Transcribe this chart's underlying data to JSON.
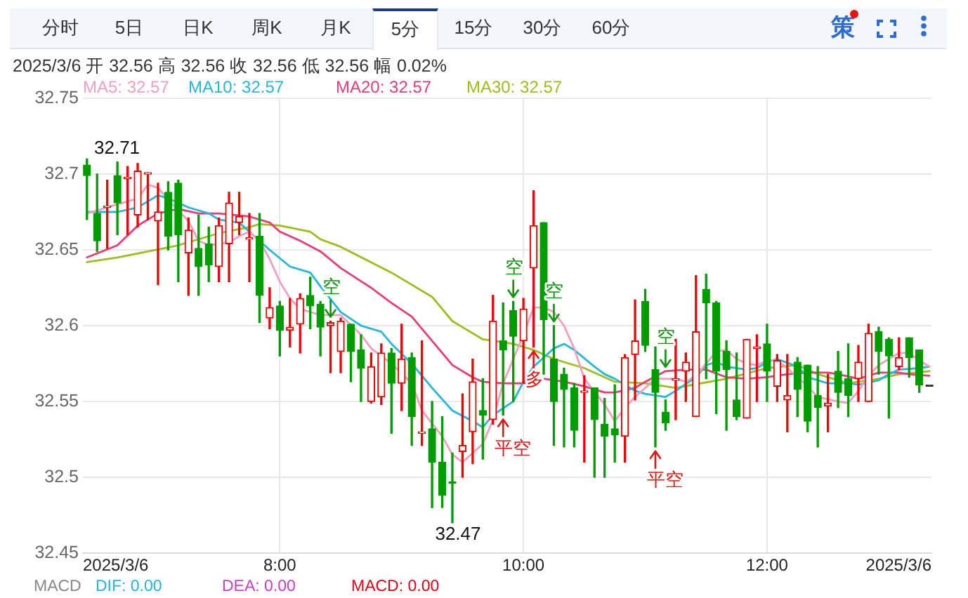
{
  "chart_data": [
    {
      "type": "other",
      "annotations": [
        "分时",
        "5日",
        "日K",
        "周K",
        "月K",
        "5分",
        "15分",
        "30分",
        "60分",
        "策"
      ]
    },
    {
      "type": "candlestick",
      "subtitle": "2025/3/6 开 32.56 高 32.56 收 32.56 低 32.56 幅 0.02%",
      "x": [
        "2025-03-06T06:25",
        "2025-03-06T06:30",
        "2025-03-06T06:35",
        "2025-03-06T06:40",
        "2025-03-06T06:45",
        "2025-03-06T06:50",
        "2025-03-06T06:55",
        "2025-03-06T07:00",
        "2025-03-06T07:05",
        "2025-03-06T07:10",
        "2025-03-06T07:15",
        "2025-03-06T07:20",
        "2025-03-06T07:25",
        "2025-03-06T07:30",
        "2025-03-06T07:35",
        "2025-03-06T07:40",
        "2025-03-06T07:45",
        "2025-03-06T07:50",
        "2025-03-06T07:55",
        "2025-03-06T08:00",
        "2025-03-06T08:05",
        "2025-03-06T08:10",
        "2025-03-06T08:15",
        "2025-03-06T08:20",
        "2025-03-06T08:25",
        "2025-03-06T08:30",
        "2025-03-06T08:35",
        "2025-03-06T08:40",
        "2025-03-06T08:45",
        "2025-03-06T08:50",
        "2025-03-06T08:55",
        "2025-03-06T09:00",
        "2025-03-06T09:05",
        "2025-03-06T09:10",
        "2025-03-06T09:15",
        "2025-03-06T09:20",
        "2025-03-06T09:25",
        "2025-03-06T09:30",
        "2025-03-06T09:35",
        "2025-03-06T09:40",
        "2025-03-06T09:45",
        "2025-03-06T09:50",
        "2025-03-06T09:55",
        "2025-03-06T10:00",
        "2025-03-06T10:05",
        "2025-03-06T10:10",
        "2025-03-06T10:15",
        "2025-03-06T10:20",
        "2025-03-06T10:25",
        "2025-03-06T10:30",
        "2025-03-06T10:35",
        "2025-03-06T10:40",
        "2025-03-06T10:45",
        "2025-03-06T10:50",
        "2025-03-06T10:55",
        "2025-03-06T11:00",
        "2025-03-06T11:05",
        "2025-03-06T11:10",
        "2025-03-06T11:15",
        "2025-03-06T11:20",
        "2025-03-06T11:25",
        "2025-03-06T11:30",
        "2025-03-06T11:35",
        "2025-03-06T11:40",
        "2025-03-06T11:45",
        "2025-03-06T11:50",
        "2025-03-06T11:55",
        "2025-03-06T12:00",
        "2025-03-06T12:05",
        "2025-03-06T12:10",
        "2025-03-06T12:15",
        "2025-03-06T12:20",
        "2025-03-06T12:25",
        "2025-03-06T12:30",
        "2025-03-06T12:35",
        "2025-03-06T12:40",
        "2025-03-06T12:45",
        "2025-03-06T12:50",
        "2025-03-06T12:55",
        "2025-03-06T13:00",
        "2025-03-06T13:05",
        "2025-03-06T13:10",
        "2025-03-06T13:15",
        "2025-03-06T13:20"
      ],
      "ohlc": [
        [
          32.706,
          32.71,
          32.67,
          32.699
        ],
        [
          32.674,
          32.7,
          32.649,
          32.656
        ],
        [
          32.678,
          32.696,
          32.651,
          32.679
        ],
        [
          32.699,
          32.708,
          32.66,
          32.681
        ],
        [
          32.697,
          32.705,
          32.66,
          32.698
        ],
        [
          32.673,
          32.707,
          32.665,
          32.702
        ],
        [
          32.7,
          32.701,
          32.67,
          32.701
        ],
        [
          32.669,
          32.694,
          32.627,
          32.675
        ],
        [
          32.688,
          32.695,
          32.65,
          32.659
        ],
        [
          32.694,
          32.696,
          32.629,
          32.66
        ],
        [
          32.648,
          32.671,
          32.62,
          32.663
        ],
        [
          32.651,
          32.673,
          32.62,
          32.639
        ],
        [
          32.654,
          32.665,
          32.629,
          32.64
        ],
        [
          32.639,
          32.671,
          32.629,
          32.666
        ],
        [
          32.654,
          32.688,
          32.629,
          32.681
        ],
        [
          32.668,
          32.688,
          32.66,
          32.672
        ],
        [
          32.657,
          32.674,
          32.629,
          32.658
        ],
        [
          32.659,
          32.674,
          32.602,
          32.62
        ],
        [
          32.605,
          32.625,
          32.598,
          32.612
        ],
        [
          32.613,
          32.616,
          32.58,
          32.597
        ],
        [
          32.597,
          32.618,
          32.586,
          32.599
        ],
        [
          32.601,
          32.621,
          32.582,
          32.618
        ],
        [
          32.62,
          32.632,
          32.598,
          32.613
        ],
        [
          32.614,
          32.616,
          32.58,
          32.599
        ],
        [
          32.6,
          32.603,
          32.569,
          32.602
        ],
        [
          32.583,
          32.605,
          32.569,
          32.603
        ],
        [
          32.601,
          32.601,
          32.563,
          32.583
        ],
        [
          32.584,
          32.594,
          32.55,
          32.572
        ],
        [
          32.55,
          32.582,
          32.549,
          32.573
        ],
        [
          32.553,
          32.588,
          32.548,
          32.582
        ],
        [
          32.582,
          32.585,
          32.529,
          32.562
        ],
        [
          32.562,
          32.601,
          32.544,
          32.578
        ],
        [
          32.579,
          32.582,
          32.521,
          32.54
        ],
        [
          32.529,
          32.59,
          32.521,
          32.53
        ],
        [
          32.532,
          32.55,
          32.48,
          32.51
        ],
        [
          32.51,
          32.54,
          32.48,
          32.488
        ],
        [
          32.497,
          32.516,
          32.47,
          32.496
        ],
        [
          32.517,
          32.555,
          32.5,
          32.521
        ],
        [
          32.53,
          32.578,
          32.509,
          32.563
        ],
        [
          32.544,
          32.565,
          32.512,
          32.541
        ],
        [
          32.538,
          32.62,
          32.535,
          32.603
        ],
        [
          32.59,
          32.615,
          32.541,
          32.584
        ],
        [
          32.61,
          32.616,
          32.55,
          32.593
        ],
        [
          32.59,
          32.618,
          32.562,
          32.611
        ],
        [
          32.638,
          32.689,
          32.586,
          32.666
        ],
        [
          32.668,
          32.668,
          32.568,
          32.604
        ],
        [
          32.578,
          32.6,
          32.521,
          32.55
        ],
        [
          32.568,
          32.572,
          32.52,
          32.558
        ],
        [
          32.559,
          32.562,
          32.52,
          32.531
        ],
        [
          32.556,
          32.567,
          32.51,
          32.557
        ],
        [
          32.559,
          32.559,
          32.5,
          32.538
        ],
        [
          32.535,
          32.552,
          32.5,
          32.527
        ],
        [
          32.532,
          32.561,
          32.51,
          32.528
        ],
        [
          32.527,
          32.581,
          32.51,
          32.579
        ],
        [
          32.581,
          32.617,
          32.551,
          32.59
        ],
        [
          32.616,
          32.624,
          32.583,
          32.587
        ],
        [
          32.571,
          32.586,
          32.52,
          32.556
        ],
        [
          32.543,
          32.551,
          32.531,
          32.536
        ],
        [
          32.564,
          32.591,
          32.538,
          32.565
        ],
        [
          32.57,
          32.582,
          32.55,
          32.576
        ],
        [
          32.54,
          32.633,
          32.54,
          32.596
        ],
        [
          32.624,
          32.634,
          32.565,
          32.615
        ],
        [
          32.615,
          32.616,
          32.542,
          32.57
        ],
        [
          32.583,
          32.59,
          32.531,
          32.571
        ],
        [
          32.551,
          32.582,
          32.538,
          32.54
        ],
        [
          32.539,
          32.591,
          32.539,
          32.591
        ],
        [
          32.585,
          32.594,
          32.55,
          32.586
        ],
        [
          32.588,
          32.601,
          32.55,
          32.57
        ],
        [
          32.56,
          32.581,
          32.55,
          32.577
        ],
        [
          32.551,
          32.581,
          32.53,
          32.554
        ],
        [
          32.576,
          32.579,
          32.54,
          32.558
        ],
        [
          32.574,
          32.574,
          32.53,
          32.537
        ],
        [
          32.554,
          32.573,
          32.52,
          32.546
        ],
        [
          32.547,
          32.568,
          32.53,
          32.549
        ],
        [
          32.57,
          32.583,
          32.546,
          32.556
        ],
        [
          32.565,
          32.588,
          32.54,
          32.554
        ],
        [
          32.565,
          32.587,
          32.55,
          32.576
        ],
        [
          32.55,
          32.601,
          32.55,
          32.595
        ],
        [
          32.596,
          32.599,
          32.568,
          32.583
        ],
        [
          32.591,
          32.592,
          32.539,
          32.58
        ],
        [
          32.573,
          32.592,
          32.571,
          32.579
        ],
        [
          32.592,
          32.592,
          32.566,
          32.579
        ],
        [
          32.584,
          32.584,
          32.556,
          32.561
        ],
        [
          32.56,
          32.56,
          32.56,
          32.56
        ]
      ],
      "colors": [
        "#009c00",
        "#009c00",
        "#f50000",
        "#009c00",
        "#f50000",
        "#f50000",
        "#f50000",
        "#f50000",
        "#009c00",
        "#009c00",
        "#f50000",
        "#009c00",
        "#009c00",
        "#f50000",
        "#f50000",
        "#f50000",
        "#f50000",
        "#009c00",
        "#f50000",
        "#009c00",
        "#f50000",
        "#f50000",
        "#009c00",
        "#009c00",
        "#f50000",
        "#f50000",
        "#009c00",
        "#009c00",
        "#f50000",
        "#f50000",
        "#009c00",
        "#f50000",
        "#009c00",
        "#f50000",
        "#009c00",
        "#009c00",
        "#009c00",
        "#f50000",
        "#f50000",
        "#009c00",
        "#f50000",
        "#009c00",
        "#009c00",
        "#f50000",
        "#f50000",
        "#009c00",
        "#009c00",
        "#009c00",
        "#009c00",
        "#f50000",
        "#009c00",
        "#009c00",
        "#009c00",
        "#f50000",
        "#f50000",
        "#009c00",
        "#009c00",
        "#009c00",
        "#f50000",
        "#f50000",
        "#f50000",
        "#009c00",
        "#009c00",
        "#009c00",
        "#009c00",
        "#f50000",
        "#f50000",
        "#009c00",
        "#f50000",
        "#f50000",
        "#009c00",
        "#009c00",
        "#009c00",
        "#f50000",
        "#009c00",
        "#009c00",
        "#f50000",
        "#f50000",
        "#009c00",
        "#009c00",
        "#f50000",
        "#009c00",
        "#009c00",
        "#333333"
      ],
      "series": [
        {
          "name": "MA5: 32.57",
          "type": "line",
          "color": "#f59ec0",
          "x": [
            "2025-03-06T06:25",
            "2025-03-06T06:40",
            "2025-03-06T06:50",
            "2025-03-06T06:55",
            "2025-03-06T07:00",
            "2025-03-06T07:05",
            "2025-03-06T07:15",
            "2025-03-06T07:20",
            "2025-03-06T07:25",
            "2025-03-06T07:35",
            "2025-03-06T07:40",
            "2025-03-06T07:45",
            "2025-03-06T07:50",
            "2025-03-06T07:55",
            "2025-03-06T08:00",
            "2025-03-06T08:05",
            "2025-03-06T08:10",
            "2025-03-06T08:20",
            "2025-03-06T08:30",
            "2025-03-06T08:40",
            "2025-03-06T08:45",
            "2025-03-06T08:55",
            "2025-03-06T09:05",
            "2025-03-06T09:10",
            "2025-03-06T09:20",
            "2025-03-06T09:25",
            "2025-03-06T09:30",
            "2025-03-06T09:35",
            "2025-03-06T09:40",
            "2025-03-06T09:45",
            "2025-03-06T09:50",
            "2025-03-06T10:00",
            "2025-03-06T10:05",
            "2025-03-06T10:10",
            "2025-03-06T10:15",
            "2025-03-06T10:20",
            "2025-03-06T10:25",
            "2025-03-06T10:30",
            "2025-03-06T10:40",
            "2025-03-06T10:45",
            "2025-03-06T10:50",
            "2025-03-06T10:55",
            "2025-03-06T11:05",
            "2025-03-06T11:15",
            "2025-03-06T11:20",
            "2025-03-06T11:25",
            "2025-03-06T11:35",
            "2025-03-06T11:40",
            "2025-03-06T11:45",
            "2025-03-06T11:50",
            "2025-03-06T11:55",
            "2025-03-06T12:00",
            "2025-03-06T12:05",
            "2025-03-06T12:10",
            "2025-03-06T12:15",
            "2025-03-06T12:20",
            "2025-03-06T12:25",
            "2025-03-06T12:35",
            "2025-03-06T12:40",
            "2025-03-06T12:45",
            "2025-03-06T12:50",
            "2025-03-06T12:55",
            "2025-03-06T13:05",
            "2025-03-06T13:10",
            "2025-03-06T13:15",
            "2025-03-06T13:20"
          ],
          "values": [
            32.674,
            32.68,
            32.684,
            32.693,
            32.691,
            32.683,
            32.669,
            32.656,
            32.653,
            32.655,
            32.659,
            32.662,
            32.656,
            32.644,
            32.629,
            32.618,
            32.611,
            32.607,
            32.607,
            32.594,
            32.585,
            32.575,
            32.562,
            32.544,
            32.527,
            32.515,
            32.51,
            32.516,
            32.522,
            32.538,
            32.562,
            32.594,
            32.612,
            32.612,
            32.609,
            32.6,
            32.585,
            32.565,
            32.548,
            32.537,
            32.546,
            32.553,
            32.565,
            32.565,
            32.563,
            32.567,
            32.583,
            32.584,
            32.578,
            32.575,
            32.574,
            32.577,
            32.577,
            32.572,
            32.566,
            32.56,
            32.553,
            32.55,
            32.549,
            32.557,
            32.567,
            32.574,
            32.582,
            32.582,
            32.577,
            32.573
          ]
        },
        {
          "name": "MA10: 32.57",
          "type": "line",
          "color": "#22b8e0",
          "x": [
            "2025-03-06T06:25",
            "2025-03-06T06:40",
            "2025-03-06T06:50",
            "2025-03-06T06:55",
            "2025-03-06T07:00",
            "2025-03-06T07:05",
            "2025-03-06T07:15",
            "2025-03-06T07:25",
            "2025-03-06T07:30",
            "2025-03-06T07:40",
            "2025-03-06T07:45",
            "2025-03-06T07:55",
            "2025-03-06T08:05",
            "2025-03-06T08:15",
            "2025-03-06T08:20",
            "2025-03-06T08:30",
            "2025-03-06T08:40",
            "2025-03-06T08:50",
            "2025-03-06T08:55",
            "2025-03-06T09:05",
            "2025-03-06T09:15",
            "2025-03-06T09:25",
            "2025-03-06T09:35",
            "2025-03-06T09:40",
            "2025-03-06T09:45",
            "2025-03-06T09:55",
            "2025-03-06T10:00",
            "2025-03-06T10:05",
            "2025-03-06T10:15",
            "2025-03-06T10:20",
            "2025-03-06T10:25",
            "2025-03-06T10:35",
            "2025-03-06T10:40",
            "2025-03-06T10:45",
            "2025-03-06T10:55",
            "2025-03-06T11:00",
            "2025-03-06T11:10",
            "2025-03-06T11:15",
            "2025-03-06T11:25",
            "2025-03-06T11:30",
            "2025-03-06T11:35",
            "2025-03-06T11:40",
            "2025-03-06T11:50",
            "2025-03-06T11:55",
            "2025-03-06T12:00",
            "2025-03-06T12:05",
            "2025-03-06T12:15",
            "2025-03-06T12:20",
            "2025-03-06T12:30",
            "2025-03-06T12:35",
            "2025-03-06T12:40",
            "2025-03-06T12:45",
            "2025-03-06T12:55",
            "2025-03-06T13:00",
            "2025-03-06T13:05",
            "2025-03-06T13:15",
            "2025-03-06T13:20"
          ],
          "values": [
            32.675,
            32.675,
            32.678,
            32.682,
            32.686,
            32.684,
            32.678,
            32.674,
            32.67,
            32.668,
            32.662,
            32.65,
            32.639,
            32.635,
            32.626,
            32.609,
            32.6,
            32.596,
            32.588,
            32.575,
            32.559,
            32.544,
            32.537,
            32.533,
            32.541,
            32.55,
            32.563,
            32.573,
            32.585,
            32.588,
            32.584,
            32.573,
            32.568,
            32.565,
            32.557,
            32.555,
            32.553,
            32.557,
            32.566,
            32.574,
            32.576,
            32.573,
            32.571,
            32.572,
            32.576,
            32.578,
            32.573,
            32.566,
            32.562,
            32.562,
            32.562,
            32.561,
            32.564,
            32.568,
            32.571,
            32.572,
            32.573
          ]
        },
        {
          "name": "MA20: 32.57",
          "type": "line",
          "color": "#ea3c78",
          "x": [
            "2025-03-06T06:25",
            "2025-03-06T06:40",
            "2025-03-06T06:50",
            "2025-03-06T07:00",
            "2025-03-06T07:10",
            "2025-03-06T07:20",
            "2025-03-06T07:30",
            "2025-03-06T07:45",
            "2025-03-06T07:55",
            "2025-03-06T08:00",
            "2025-03-06T08:10",
            "2025-03-06T08:20",
            "2025-03-06T08:30",
            "2025-03-06T08:45",
            "2025-03-06T08:55",
            "2025-03-06T09:05",
            "2025-03-06T09:15",
            "2025-03-06T09:25",
            "2025-03-06T09:35",
            "2025-03-06T09:40",
            "2025-03-06T09:50",
            "2025-03-06T10:00",
            "2025-03-06T10:10",
            "2025-03-06T10:20",
            "2025-03-06T10:30",
            "2025-03-06T10:40",
            "2025-03-06T10:45",
            "2025-03-06T10:55",
            "2025-03-06T11:00",
            "2025-03-06T11:10",
            "2025-03-06T11:20",
            "2025-03-06T11:30",
            "2025-03-06T11:40",
            "2025-03-06T11:50",
            "2025-03-06T12:00",
            "2025-03-06T12:10",
            "2025-03-06T12:20",
            "2025-03-06T12:30",
            "2025-03-06T12:35",
            "2025-03-06T12:45",
            "2025-03-06T12:55",
            "2025-03-06T13:05",
            "2025-03-06T13:10",
            "2025-03-06T13:20"
          ],
          "values": [
            32.645,
            32.653,
            32.666,
            32.674,
            32.677,
            32.674,
            32.674,
            32.672,
            32.668,
            32.662,
            32.656,
            32.649,
            32.638,
            32.625,
            32.615,
            32.606,
            32.59,
            32.574,
            32.566,
            32.563,
            32.562,
            32.562,
            32.565,
            32.563,
            32.56,
            32.556,
            32.556,
            32.559,
            32.563,
            32.57,
            32.571,
            32.571,
            32.566,
            32.565,
            32.566,
            32.568,
            32.569,
            32.569,
            32.568,
            32.565,
            32.569,
            32.569,
            32.568,
            32.567
          ]
        },
        {
          "name": "MA30: 32.57",
          "type": "line",
          "color": "#9bbf1c",
          "x": [
            "2025-03-06T06:25",
            "2025-03-06T06:40",
            "2025-03-06T07:10",
            "2025-03-06T07:30",
            "2025-03-06T07:45",
            "2025-03-06T07:50",
            "2025-03-06T08:00",
            "2025-03-06T08:15",
            "2025-03-06T08:20",
            "2025-03-06T08:30",
            "2025-03-06T08:55",
            "2025-03-06T09:15",
            "2025-03-06T09:25",
            "2025-03-06T09:30",
            "2025-03-06T09:40",
            "2025-03-06T09:55",
            "2025-03-06T10:05",
            "2025-03-06T10:15",
            "2025-03-06T10:30",
            "2025-03-06T10:45",
            "2025-03-06T11:00",
            "2025-03-06T11:15",
            "2025-03-06T11:40",
            "2025-03-06T12:00",
            "2025-03-06T12:15",
            "2025-03-06T12:25",
            "2025-03-06T12:40",
            "2025-03-06T12:55",
            "2025-03-06T13:05",
            "2025-03-06T13:20"
          ],
          "values": [
            32.642,
            32.645,
            32.653,
            32.661,
            32.665,
            32.667,
            32.666,
            32.662,
            32.657,
            32.652,
            32.635,
            32.619,
            32.603,
            32.599,
            32.591,
            32.588,
            32.584,
            32.578,
            32.572,
            32.563,
            32.562,
            32.559,
            32.565,
            32.572,
            32.574,
            32.568,
            32.562,
            32.565,
            32.568,
            32.57
          ]
        }
      ],
      "xlim": [
        "2025-03-06T06:23",
        "2025-03-06T13:21"
      ],
      "xticks": [
        {
          "value": "2025-03-06T06:23",
          "label": "2025/3/6"
        },
        {
          "value": "2025-03-06T08:00",
          "label": "8:00"
        },
        {
          "value": "2025-03-06T10:00",
          "label": "10:00"
        },
        {
          "value": "2025-03-06T12:00",
          "label": "12:00"
        },
        {
          "value": "2025-03-06T13:21",
          "label": "2025/3/6"
        }
      ],
      "ylim": [
        32.45,
        32.75
      ],
      "yticks": [
        32.45,
        32.5,
        32.55,
        32.6,
        32.65,
        32.7,
        32.75
      ],
      "grid": true,
      "legend": "top left",
      "annotations": [
        {
          "text": "32.71",
          "x": "2025-03-06T06:25",
          "y": 32.71
        },
        {
          "text": "32.47",
          "x": "2025-03-06T09:25",
          "y": 32.47
        },
        {
          "text": "空",
          "x": "2025-03-06T08:25",
          "y": 32.603
        },
        {
          "text": "空",
          "x": "2025-03-06T09:55",
          "y": 32.616
        },
        {
          "text": "平空",
          "x": "2025-03-06T09:50",
          "y": 32.541
        },
        {
          "text": "多",
          "x": "2025-03-06T10:05",
          "y": 32.586
        },
        {
          "text": "空",
          "x": "2025-03-06T10:15",
          "y": 32.6
        },
        {
          "text": "平空",
          "x": "2025-03-06T11:05",
          "y": 32.52
        },
        {
          "text": "空",
          "x": "2025-03-06T11:10",
          "y": 32.57
        }
      ]
    },
    {
      "type": "other",
      "annotations": [
        "MACD",
        "DIF: 0.00",
        "DEA: 0.00",
        "MACD: 0.00"
      ]
    }
  ]
}
